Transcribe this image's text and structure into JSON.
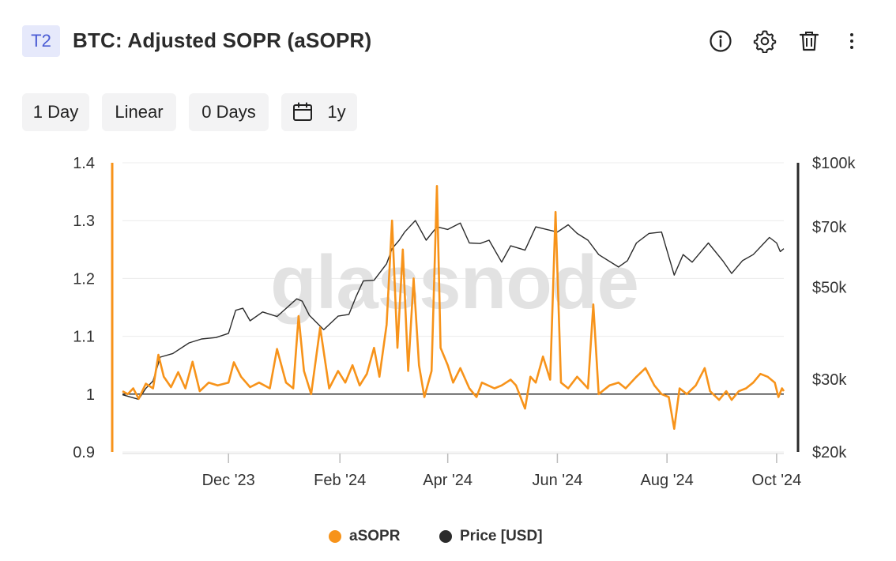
{
  "header": {
    "badge": "T2",
    "title": "BTC: Adjusted SOPR (aSOPR)",
    "actions": [
      {
        "icon": "info-icon"
      },
      {
        "icon": "gear-icon"
      },
      {
        "icon": "trash-icon"
      },
      {
        "icon": "more-vertical-icon"
      }
    ]
  },
  "toolbar": {
    "resolution": "1 Day",
    "scale": "Linear",
    "smoothing": "0 Days",
    "range": "1y",
    "range_icon": "calendar-icon"
  },
  "watermark": "glassnode",
  "colors": {
    "asopr": "#f7931a",
    "price": "#2b2b2b",
    "baseline": "#333333",
    "grid": "#ececec"
  },
  "legend": [
    {
      "label": "aSOPR",
      "color": "#f7931a"
    },
    {
      "label": "Price [USD]",
      "color": "#2b2b2b"
    }
  ],
  "chart_data": {
    "type": "line",
    "title": "BTC: Adjusted SOPR (aSOPR)",
    "x_tick_labels": [
      "Dec '23",
      "Feb '24",
      "Apr '24",
      "Jun '24",
      "Aug '24",
      "Oct '24"
    ],
    "x_tick_dates": [
      "2023-12-01",
      "2024-02-01",
      "2024-04-01",
      "2024-06-01",
      "2024-08-01",
      "2024-10-01"
    ],
    "xlim": [
      "2023-10-03",
      "2024-10-05"
    ],
    "y_left": {
      "range": [
        0.9,
        1.4
      ],
      "ticks": [
        "0.9",
        "1",
        "1.1",
        "1.2",
        "1.3",
        "1.4"
      ],
      "scale": "linear"
    },
    "y_right": {
      "range": [
        20000,
        100000
      ],
      "ticks": [
        "$20k",
        "$30k",
        "$50k",
        "$70k",
        "$100k"
      ],
      "tick_values": [
        20000,
        30000,
        50000,
        70000,
        100000
      ],
      "scale": "log"
    },
    "baseline": 1,
    "grid": true,
    "legend_position": "bottom-center",
    "series": [
      {
        "name": "Price [USD]",
        "axis": "right",
        "points": [
          [
            "2023-10-03",
            27500
          ],
          [
            "2023-10-12",
            26800
          ],
          [
            "2023-10-16",
            28500
          ],
          [
            "2023-10-20",
            29700
          ],
          [
            "2023-10-24",
            33900
          ],
          [
            "2023-10-31",
            34600
          ],
          [
            "2023-11-09",
            36700
          ],
          [
            "2023-11-16",
            37500
          ],
          [
            "2023-11-24",
            37800
          ],
          [
            "2023-12-01",
            38700
          ],
          [
            "2023-12-05",
            44000
          ],
          [
            "2023-12-09",
            44500
          ],
          [
            "2023-12-13",
            41500
          ],
          [
            "2023-12-20",
            43600
          ],
          [
            "2023-12-28",
            42500
          ],
          [
            "2024-01-08",
            46900
          ],
          [
            "2024-01-11",
            46300
          ],
          [
            "2024-01-15",
            42800
          ],
          [
            "2024-01-23",
            39500
          ],
          [
            "2024-01-31",
            42600
          ],
          [
            "2024-02-06",
            43000
          ],
          [
            "2024-02-10",
            47500
          ],
          [
            "2024-02-14",
            51800
          ],
          [
            "2024-02-20",
            52000
          ],
          [
            "2024-02-27",
            57000
          ],
          [
            "2024-03-01",
            62000
          ],
          [
            "2024-03-05",
            65000
          ],
          [
            "2024-03-08",
            68000
          ],
          [
            "2024-03-14",
            72500
          ],
          [
            "2024-03-20",
            65000
          ],
          [
            "2024-03-26",
            70000
          ],
          [
            "2024-04-01",
            69000
          ],
          [
            "2024-04-08",
            71500
          ],
          [
            "2024-04-13",
            64000
          ],
          [
            "2024-04-19",
            63800
          ],
          [
            "2024-04-24",
            65000
          ],
          [
            "2024-05-01",
            57500
          ],
          [
            "2024-05-06",
            63000
          ],
          [
            "2024-05-14",
            61500
          ],
          [
            "2024-05-20",
            70000
          ],
          [
            "2024-06-01",
            68000
          ],
          [
            "2024-06-07",
            70800
          ],
          [
            "2024-06-12",
            67500
          ],
          [
            "2024-06-18",
            65000
          ],
          [
            "2024-06-24",
            60000
          ],
          [
            "2024-07-05",
            56000
          ],
          [
            "2024-07-10",
            58000
          ],
          [
            "2024-07-15",
            64000
          ],
          [
            "2024-07-22",
            67500
          ],
          [
            "2024-07-29",
            68000
          ],
          [
            "2024-08-05",
            53500
          ],
          [
            "2024-08-10",
            60000
          ],
          [
            "2024-08-15",
            57500
          ],
          [
            "2024-08-24",
            64000
          ],
          [
            "2024-09-01",
            58000
          ],
          [
            "2024-09-06",
            54000
          ],
          [
            "2024-09-12",
            58000
          ],
          [
            "2024-09-18",
            60000
          ],
          [
            "2024-09-27",
            66000
          ],
          [
            "2024-10-01",
            64000
          ],
          [
            "2024-10-03",
            61000
          ],
          [
            "2024-10-05",
            62000
          ]
        ]
      },
      {
        "name": "aSOPR",
        "axis": "left",
        "points": [
          [
            "2023-10-03",
            1.005
          ],
          [
            "2023-10-06",
            1.0
          ],
          [
            "2023-10-09",
            1.01
          ],
          [
            "2023-10-12",
            0.992
          ],
          [
            "2023-10-16",
            1.018
          ],
          [
            "2023-10-20",
            1.01
          ],
          [
            "2023-10-23",
            1.068
          ],
          [
            "2023-10-26",
            1.03
          ],
          [
            "2023-10-30",
            1.012
          ],
          [
            "2023-11-03",
            1.038
          ],
          [
            "2023-11-07",
            1.01
          ],
          [
            "2023-11-11",
            1.056
          ],
          [
            "2023-11-15",
            1.005
          ],
          [
            "2023-11-20",
            1.02
          ],
          [
            "2023-11-25",
            1.015
          ],
          [
            "2023-12-01",
            1.02
          ],
          [
            "2023-12-04",
            1.055
          ],
          [
            "2023-12-08",
            1.03
          ],
          [
            "2023-12-13",
            1.012
          ],
          [
            "2023-12-18",
            1.02
          ],
          [
            "2023-12-24",
            1.01
          ],
          [
            "2023-12-28",
            1.078
          ],
          [
            "2024-01-02",
            1.02
          ],
          [
            "2024-01-06",
            1.01
          ],
          [
            "2024-01-09",
            1.135
          ],
          [
            "2024-01-12",
            1.04
          ],
          [
            "2024-01-16",
            1.0
          ],
          [
            "2024-01-21",
            1.115
          ],
          [
            "2024-01-26",
            1.01
          ],
          [
            "2024-01-31",
            1.04
          ],
          [
            "2024-02-04",
            1.02
          ],
          [
            "2024-02-08",
            1.05
          ],
          [
            "2024-02-12",
            1.015
          ],
          [
            "2024-02-16",
            1.035
          ],
          [
            "2024-02-20",
            1.08
          ],
          [
            "2024-02-23",
            1.03
          ],
          [
            "2024-02-27",
            1.12
          ],
          [
            "2024-03-01",
            1.3
          ],
          [
            "2024-03-04",
            1.08
          ],
          [
            "2024-03-07",
            1.25
          ],
          [
            "2024-03-10",
            1.04
          ],
          [
            "2024-03-13",
            1.2
          ],
          [
            "2024-03-16",
            1.05
          ],
          [
            "2024-03-19",
            0.995
          ],
          [
            "2024-03-23",
            1.04
          ],
          [
            "2024-03-26",
            1.36
          ],
          [
            "2024-03-28",
            1.08
          ],
          [
            "2024-04-01",
            1.05
          ],
          [
            "2024-04-04",
            1.02
          ],
          [
            "2024-04-08",
            1.045
          ],
          [
            "2024-04-13",
            1.01
          ],
          [
            "2024-04-17",
            0.995
          ],
          [
            "2024-04-20",
            1.02
          ],
          [
            "2024-04-27",
            1.01
          ],
          [
            "2024-05-01",
            1.015
          ],
          [
            "2024-05-06",
            1.025
          ],
          [
            "2024-05-09",
            1.015
          ],
          [
            "2024-05-14",
            0.975
          ],
          [
            "2024-05-17",
            1.03
          ],
          [
            "2024-05-20",
            1.02
          ],
          [
            "2024-05-24",
            1.065
          ],
          [
            "2024-05-28",
            1.025
          ],
          [
            "2024-05-31",
            1.315
          ],
          [
            "2024-06-03",
            1.02
          ],
          [
            "2024-06-07",
            1.01
          ],
          [
            "2024-06-12",
            1.03
          ],
          [
            "2024-06-18",
            1.01
          ],
          [
            "2024-06-21",
            1.155
          ],
          [
            "2024-06-24",
            1.0
          ],
          [
            "2024-06-30",
            1.015
          ],
          [
            "2024-07-05",
            1.02
          ],
          [
            "2024-07-09",
            1.01
          ],
          [
            "2024-07-15",
            1.03
          ],
          [
            "2024-07-20",
            1.045
          ],
          [
            "2024-07-25",
            1.015
          ],
          [
            "2024-07-29",
            1.0
          ],
          [
            "2024-08-02",
            0.995
          ],
          [
            "2024-08-05",
            0.94
          ],
          [
            "2024-08-08",
            1.01
          ],
          [
            "2024-08-12",
            1.0
          ],
          [
            "2024-08-17",
            1.015
          ],
          [
            "2024-08-22",
            1.045
          ],
          [
            "2024-08-25",
            1.005
          ],
          [
            "2024-08-30",
            0.99
          ],
          [
            "2024-09-03",
            1.005
          ],
          [
            "2024-09-06",
            0.99
          ],
          [
            "2024-09-10",
            1.005
          ],
          [
            "2024-09-14",
            1.01
          ],
          [
            "2024-09-18",
            1.02
          ],
          [
            "2024-09-22",
            1.035
          ],
          [
            "2024-09-26",
            1.03
          ],
          [
            "2024-09-30",
            1.02
          ],
          [
            "2024-10-02",
            0.995
          ],
          [
            "2024-10-04",
            1.01
          ],
          [
            "2024-10-05",
            1.005
          ]
        ]
      }
    ]
  }
}
